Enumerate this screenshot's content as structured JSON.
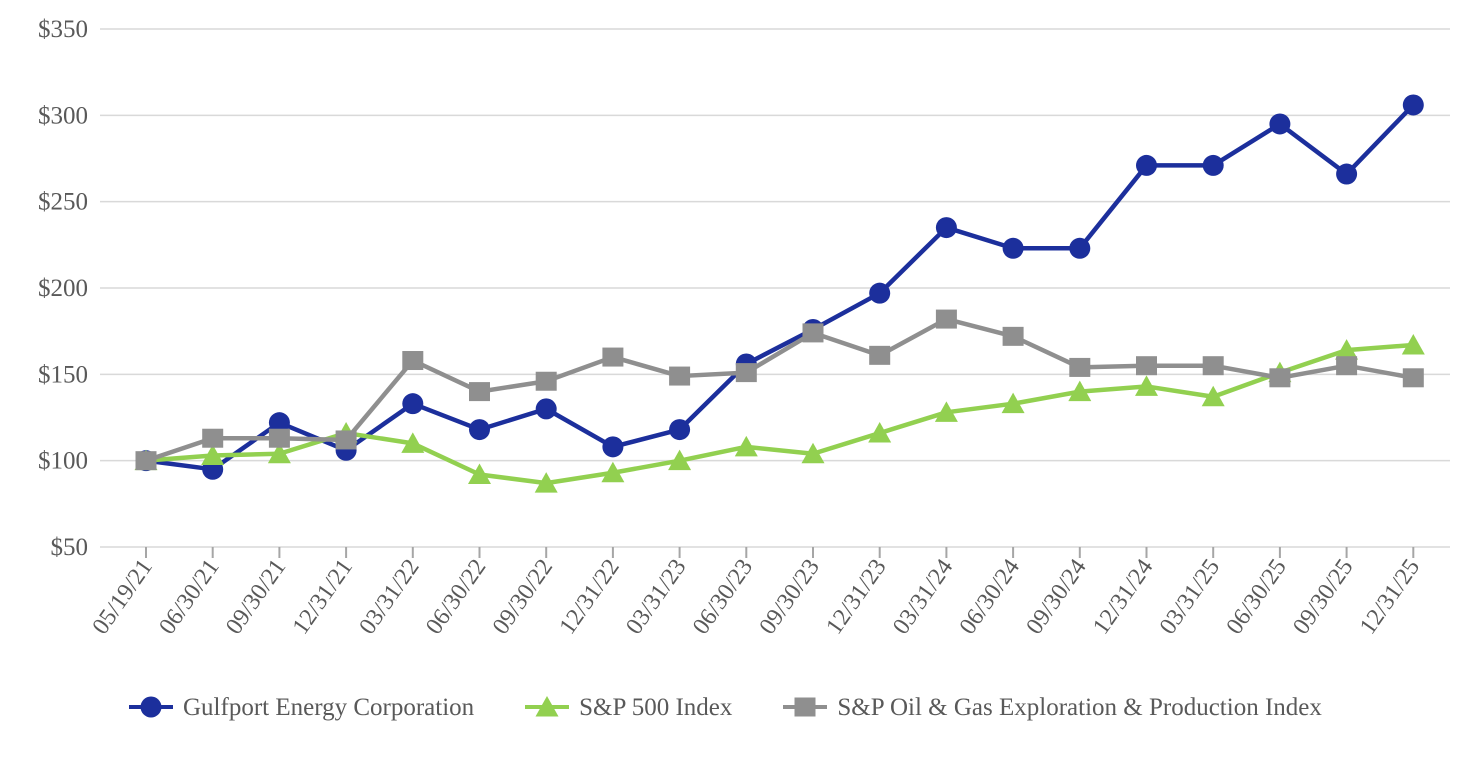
{
  "chart_data": {
    "type": "line",
    "title": "",
    "x": [
      "05/19/21",
      "06/30/21",
      "09/30/21",
      "12/31/21",
      "03/31/22",
      "06/30/22",
      "09/30/22",
      "12/31/22",
      "03/31/23",
      "06/30/23",
      "09/30/23",
      "12/31/23",
      "03/31/24",
      "06/30/24",
      "09/30/24",
      "12/31/24",
      "03/31/25",
      "06/30/25",
      "09/30/25",
      "12/31/25"
    ],
    "series": [
      {
        "id": "gulfport",
        "name": "Gulfport Energy Corporation",
        "marker": "circle",
        "color": "#1c2f9c",
        "values": [
          100,
          95,
          122,
          106,
          133,
          118,
          130,
          108,
          118,
          156,
          176,
          197,
          235,
          223,
          223,
          271,
          271,
          295,
          266,
          306
        ]
      },
      {
        "id": "sp500",
        "name": "S&P 500 Index",
        "marker": "triangle",
        "color": "#92d050",
        "values": [
          100,
          103,
          104,
          116,
          110,
          92,
          87,
          93,
          100,
          108,
          104,
          116,
          128,
          133,
          140,
          143,
          137,
          151,
          164,
          167
        ]
      },
      {
        "id": "oil-gas-index",
        "name": "S&P Oil & Gas Exploration & Production Index",
        "marker": "square",
        "color": "#8f8f8f",
        "values": [
          100,
          113,
          113,
          112,
          158,
          140,
          146,
          160,
          149,
          151,
          174,
          161,
          182,
          172,
          154,
          155,
          155,
          148,
          155,
          148
        ]
      }
    ],
    "ylim": [
      50,
      350
    ],
    "ytick_interval": 50,
    "ytick_labels": [
      "$50",
      "$100",
      "$150",
      "$200",
      "$250",
      "$300",
      "$350"
    ],
    "ytick_prefix": "$",
    "grid": true,
    "legend_position": "bottom",
    "axis_text_color": "#595959",
    "gridline_color": "#d9d9d9",
    "tick_color": "#a6a6a6"
  }
}
